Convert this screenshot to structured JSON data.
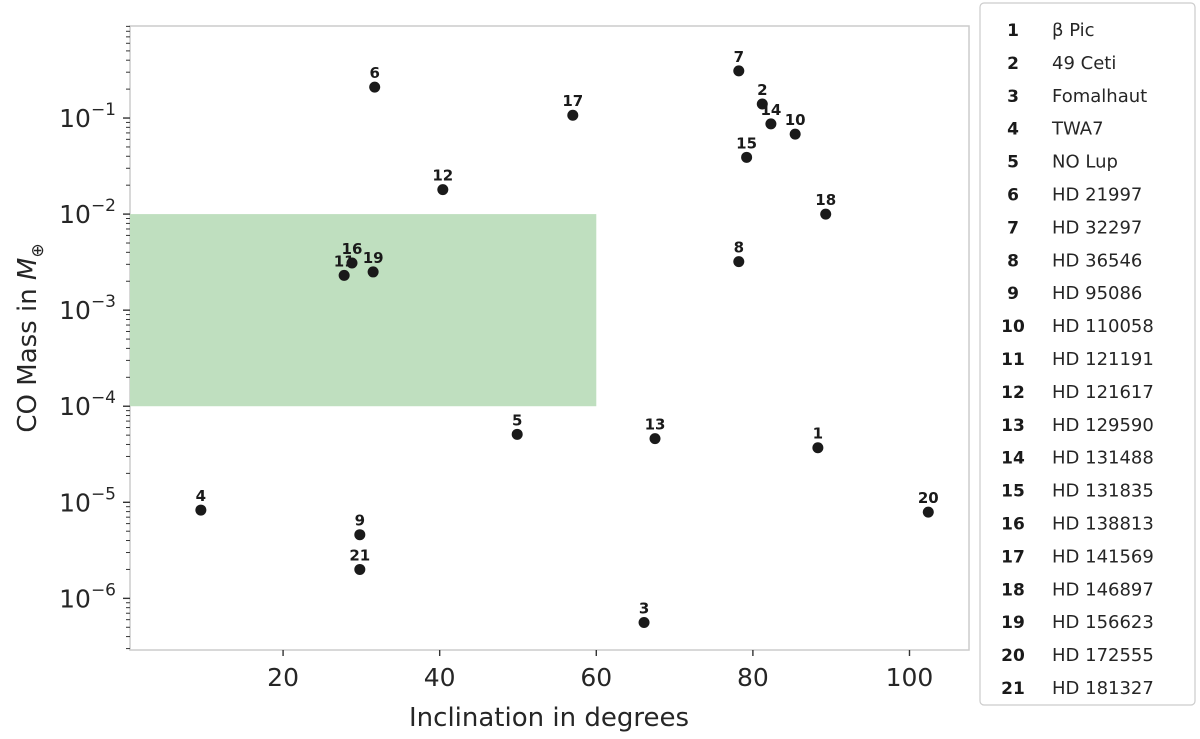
{
  "chart_data": {
    "type": "scatter",
    "title": "",
    "xlabel": "Inclination in degrees",
    "ylabel_prefix": "CO Mass in ",
    "ylabel_symbol": "M",
    "ylabel_subscript": "⊕",
    "xscale": "linear",
    "yscale": "log",
    "xlim": [
      0.45,
      107.6
    ],
    "ylim": [
      2.9e-07,
      0.908
    ],
    "xticks": [
      20,
      40,
      60,
      80,
      100
    ],
    "xtick_labels": [
      "20",
      "40",
      "60",
      "80",
      "100"
    ],
    "yticks": [
      1e-06,
      1e-05,
      0.0001,
      0.001,
      0.01,
      0.1
    ],
    "ytick_labels": [
      {
        "base": "10",
        "exp": "−6"
      },
      {
        "base": "10",
        "exp": "−5"
      },
      {
        "base": "10",
        "exp": "−4"
      },
      {
        "base": "10",
        "exp": "−3"
      },
      {
        "base": "10",
        "exp": "−2"
      },
      {
        "base": "10",
        "exp": "−1"
      }
    ],
    "grid": false,
    "shaded_region": {
      "x": [
        0,
        60
      ],
      "y": [
        0.0001,
        0.01
      ],
      "color": "#bfdfbf"
    },
    "marker_color": "#1a1a1a",
    "points": [
      {
        "id": "1",
        "name": "β Pic",
        "x": 88.3,
        "y": 3.7e-05
      },
      {
        "id": "2",
        "name": "49 Ceti",
        "x": 81.2,
        "y": 0.14
      },
      {
        "id": "3",
        "name": "Fomalhaut",
        "x": 66.1,
        "y": 5.6e-07
      },
      {
        "id": "4",
        "name": "TWA7",
        "x": 9.5,
        "y": 8.3e-06
      },
      {
        "id": "5",
        "name": "NO Lup",
        "x": 49.9,
        "y": 5.1e-05
      },
      {
        "id": "6",
        "name": "HD 21997",
        "x": 31.7,
        "y": 0.21
      },
      {
        "id": "7",
        "name": "HD 32297",
        "x": 78.2,
        "y": 0.31
      },
      {
        "id": "8",
        "name": "HD 36546",
        "x": 78.2,
        "y": 0.0032
      },
      {
        "id": "9",
        "name": "HD 95086",
        "x": 29.8,
        "y": 4.6e-06
      },
      {
        "id": "10",
        "name": "HD 110058",
        "x": 85.4,
        "y": 0.068
      },
      {
        "id": "11",
        "name": "HD 121191",
        "x": 27.8,
        "y": 0.0023
      },
      {
        "id": "12",
        "name": "HD 121617",
        "x": 40.4,
        "y": 0.018
      },
      {
        "id": "13",
        "name": "HD 129590",
        "x": 67.5,
        "y": 4.6e-05
      },
      {
        "id": "14",
        "name": "HD 131488",
        "x": 82.3,
        "y": 0.087
      },
      {
        "id": "15",
        "name": "HD 131835",
        "x": 79.2,
        "y": 0.039
      },
      {
        "id": "16",
        "name": "HD 138813",
        "x": 28.8,
        "y": 0.0031
      },
      {
        "id": "17",
        "name": "HD 141569",
        "x": 57.0,
        "y": 0.107
      },
      {
        "id": "18",
        "name": "HD 146897",
        "x": 89.3,
        "y": 0.01
      },
      {
        "id": "19",
        "name": "HD 156623",
        "x": 31.5,
        "y": 0.0025
      },
      {
        "id": "20",
        "name": "HD 172555",
        "x": 102.4,
        "y": 7.9e-06
      },
      {
        "id": "21",
        "name": "HD 181327",
        "x": 29.8,
        "y": 2e-06
      }
    ],
    "legend_placement": "outside-right"
  }
}
